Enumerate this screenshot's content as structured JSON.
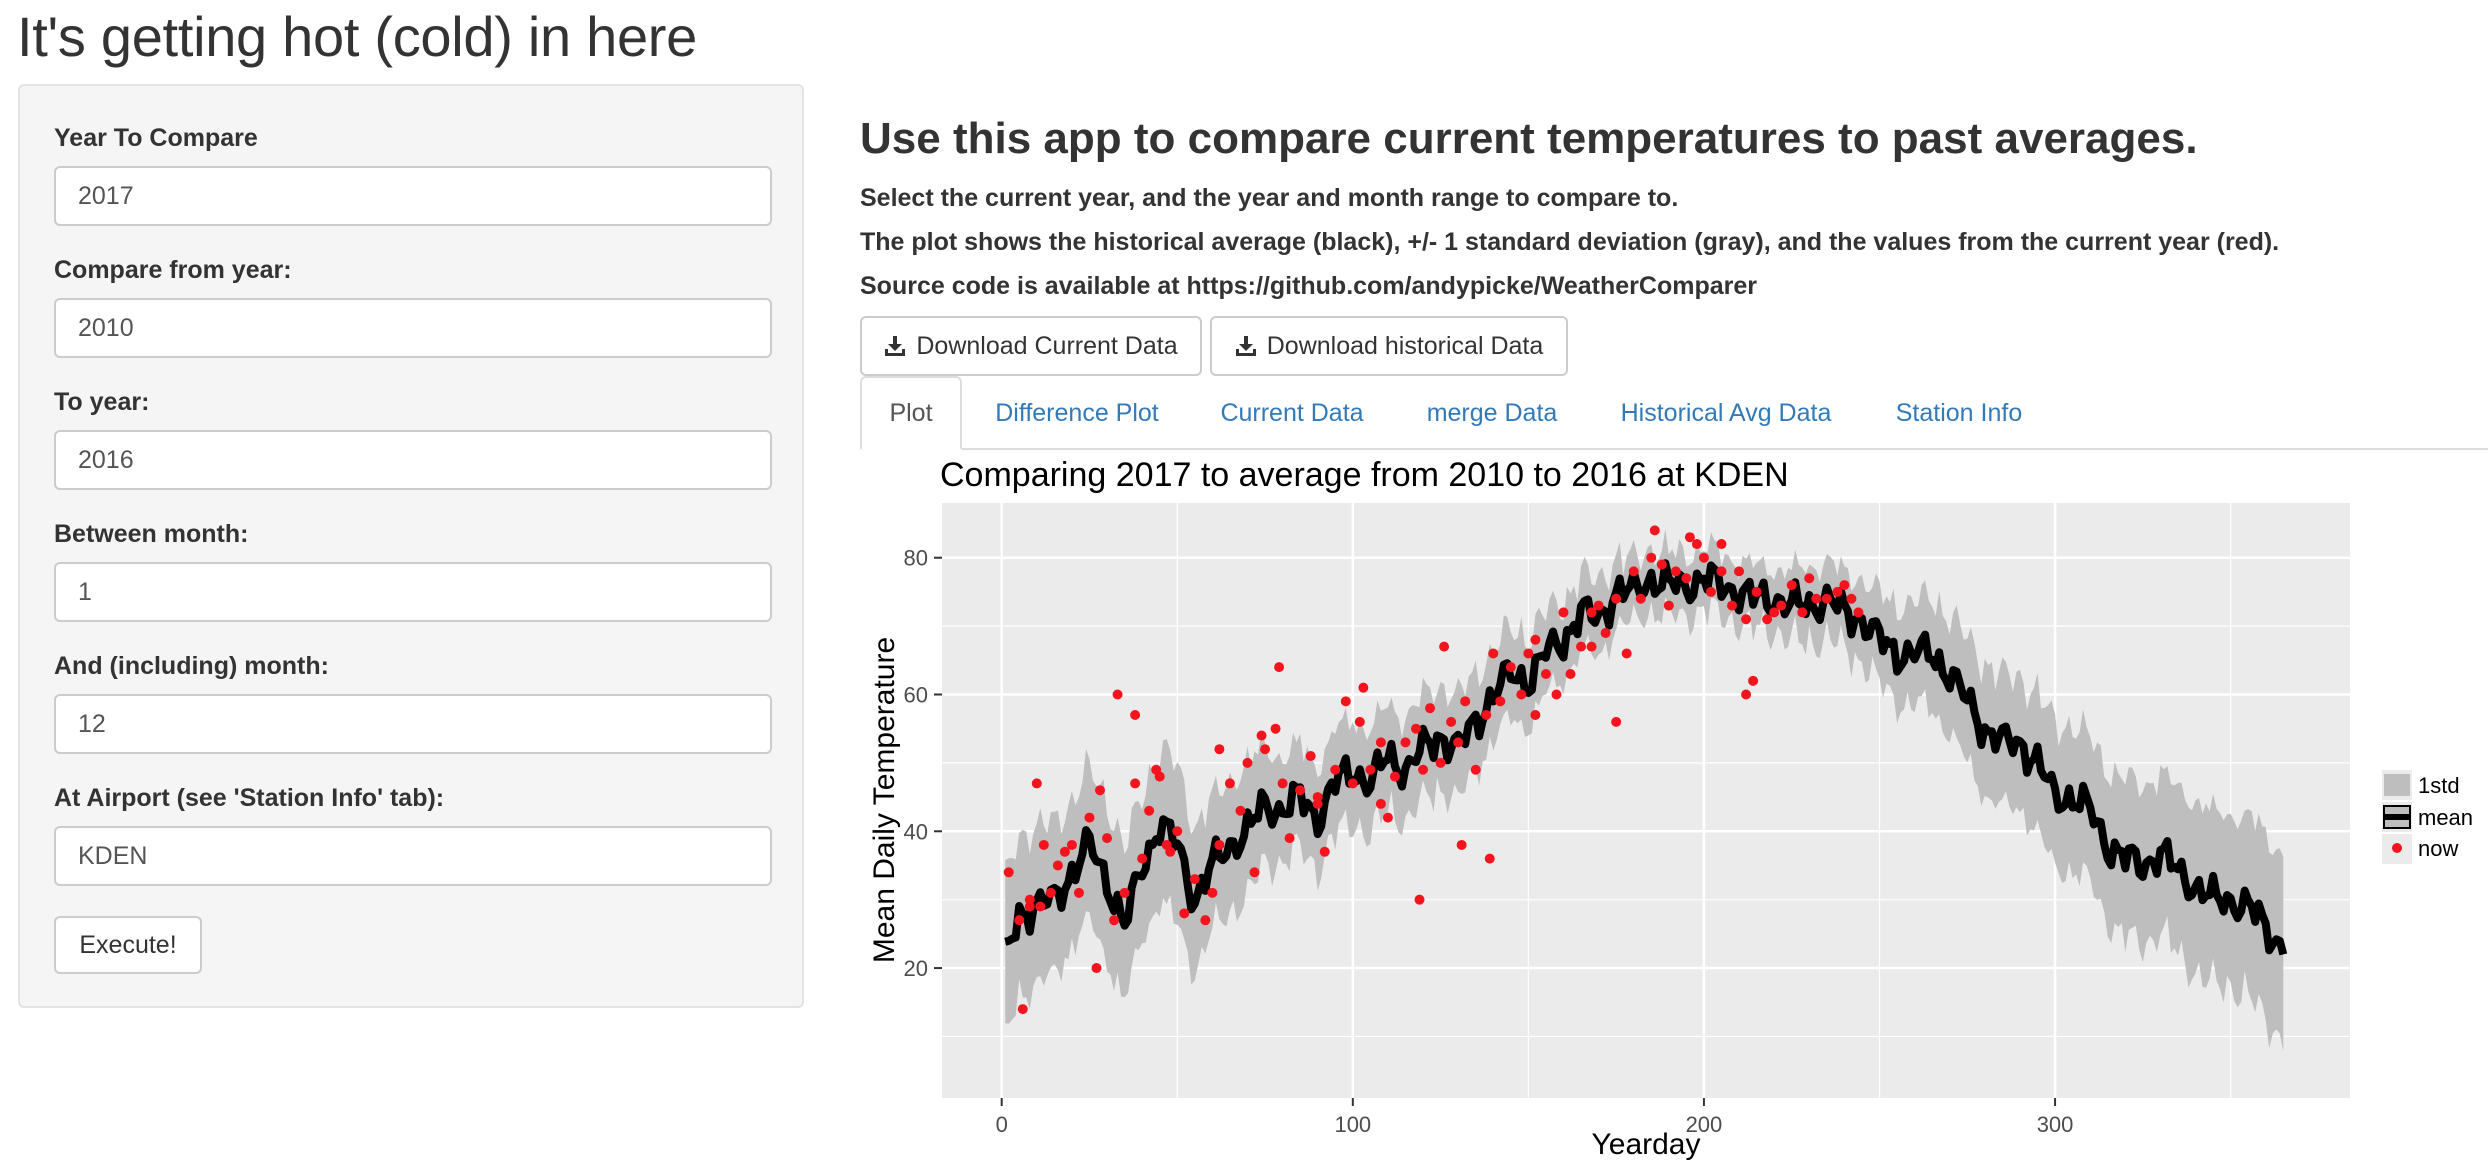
{
  "app": {
    "title": "It's getting hot (cold) in here"
  },
  "sidebar": {
    "fields": [
      {
        "label": "Year To Compare",
        "value": "2017"
      },
      {
        "label": "Compare from year:",
        "value": "2010"
      },
      {
        "label": "To year:",
        "value": "2016"
      },
      {
        "label": "Between month:",
        "value": "1"
      },
      {
        "label": "And (including) month:",
        "value": "12"
      },
      {
        "label": "At Airport (see 'Station Info' tab):",
        "value": "KDEN"
      }
    ],
    "execute_label": "Execute!"
  },
  "main": {
    "heading": "Use this app to compare current temperatures to past averages.",
    "lines": [
      "Select the current year, and the year and month range to compare to.",
      "The plot shows the historical average (black), +/- 1 standard deviation (gray), and the values from the current year (red).",
      "Source code is available at https://github.com/andypicke/WeatherComparer"
    ],
    "download_current_label": "Download Current Data",
    "download_historical_label": "Download historical Data",
    "tabs": [
      "Plot",
      "Difference Plot",
      "Current Data",
      "merge Data",
      "Historical Avg Data",
      "Station Info"
    ],
    "active_tab": "Plot"
  },
  "colors": {
    "panel_bg": "#ebebeb",
    "grid": "#ffffff",
    "band": "#bebebe",
    "mean": "#000000",
    "now": "#f5141e",
    "link": "#337ab7"
  },
  "chart_data": {
    "type": "line",
    "title": "Comparing  2017  to average from  2010 to 2016 at  KDEN",
    "xlabel": "Yearday",
    "ylabel": "Mean Daily Temperature",
    "xlim": [
      -17,
      384
    ],
    "ylim": [
      1,
      88
    ],
    "xticks": [
      0,
      100,
      200,
      300
    ],
    "yticks": [
      20,
      40,
      60,
      80
    ],
    "legend": {
      "position": "right",
      "entries": [
        "1std",
        "mean",
        "now"
      ]
    },
    "mean_keyframes": {
      "x": [
        1,
        5,
        10,
        15,
        20,
        25,
        30,
        35,
        40,
        45,
        50,
        55,
        60,
        65,
        70,
        75,
        80,
        85,
        90,
        95,
        100,
        105,
        110,
        115,
        120,
        125,
        130,
        135,
        140,
        145,
        150,
        155,
        160,
        165,
        170,
        175,
        180,
        185,
        190,
        195,
        200,
        205,
        210,
        215,
        220,
        225,
        230,
        235,
        240,
        245,
        250,
        255,
        260,
        265,
        270,
        275,
        280,
        285,
        290,
        295,
        300,
        305,
        310,
        315,
        320,
        325,
        330,
        335,
        340,
        345,
        350,
        355,
        360,
        365
      ],
      "y": [
        21,
        28,
        29,
        30,
        34,
        38,
        33,
        26,
        35,
        41,
        38,
        30,
        35,
        38,
        40,
        44,
        43,
        45,
        42,
        47,
        49,
        47,
        51,
        49,
        52,
        54,
        52,
        56,
        60,
        63,
        62,
        66,
        68,
        72,
        71,
        75,
        75,
        77,
        76,
        76,
        77,
        76,
        75,
        74,
        74,
        73,
        73,
        74,
        72,
        71,
        68,
        66,
        66,
        66,
        63,
        59,
        55,
        53,
        53,
        50,
        45,
        45,
        43,
        38,
        36,
        35,
        37,
        34,
        32,
        30,
        30,
        29,
        26,
        23
      ]
    },
    "std_keyframes": {
      "x": [
        1,
        10,
        20,
        30,
        40,
        50,
        60,
        70,
        80,
        90,
        100,
        110,
        120,
        130,
        140,
        150,
        160,
        170,
        180,
        190,
        200,
        210,
        220,
        230,
        240,
        250,
        260,
        270,
        280,
        290,
        300,
        310,
        320,
        330,
        340,
        350,
        360,
        365
      ],
      "y": [
        10,
        10,
        9,
        10,
        9,
        10,
        8,
        8,
        6,
        6,
        6,
        6,
        6,
        6,
        5,
        5,
        4,
        4,
        3,
        3,
        3,
        3,
        3,
        4,
        4,
        5,
        6,
        7,
        8,
        8,
        9,
        9,
        10,
        10,
        11,
        11,
        12,
        12
      ]
    },
    "now_points": {
      "x": [
        2,
        5,
        8,
        10,
        12,
        14,
        16,
        18,
        20,
        22,
        25,
        28,
        30,
        32,
        35,
        38,
        40,
        42,
        45,
        48,
        50,
        52,
        55,
        58,
        60,
        62,
        65,
        68,
        70,
        72,
        75,
        78,
        80,
        82,
        85,
        88,
        90,
        92,
        95,
        98,
        100,
        102,
        105,
        108,
        110,
        112,
        115,
        118,
        120,
        122,
        125,
        128,
        130,
        132,
        135,
        138,
        140,
        142,
        145,
        148,
        150,
        152,
        155,
        158,
        160,
        162,
        165,
        168,
        170,
        172,
        175,
        178,
        180,
        182,
        185,
        188,
        190,
        192,
        195,
        198,
        200,
        202,
        205,
        208,
        210,
        212,
        215,
        218,
        220,
        222,
        225,
        228,
        230,
        232,
        235,
        238,
        240,
        242,
        244,
        6,
        11,
        27,
        33,
        38,
        47,
        79,
        103,
        119,
        131,
        139,
        175,
        196,
        212,
        214,
        8,
        44,
        62,
        74,
        90,
        108,
        126,
        152,
        168,
        186,
        205
      ],
      "y": [
        34,
        27,
        30,
        47,
        38,
        31,
        35,
        37,
        38,
        31,
        42,
        46,
        39,
        27,
        31,
        47,
        36,
        43,
        48,
        37,
        40,
        28,
        33,
        27,
        31,
        38,
        47,
        43,
        50,
        34,
        52,
        55,
        47,
        39,
        46,
        51,
        44,
        37,
        49,
        59,
        47,
        56,
        49,
        53,
        42,
        48,
        53,
        55,
        49,
        58,
        50,
        56,
        53,
        59,
        49,
        57,
        66,
        59,
        64,
        60,
        66,
        57,
        63,
        60,
        72,
        63,
        67,
        72,
        73,
        69,
        74,
        66,
        78,
        74,
        80,
        79,
        73,
        78,
        77,
        82,
        80,
        75,
        78,
        73,
        78,
        71,
        75,
        71,
        72,
        73,
        76,
        72,
        77,
        74,
        74,
        75,
        76,
        74,
        72,
        14,
        29,
        20,
        60,
        57,
        38,
        64,
        61,
        30,
        38,
        36,
        56,
        83,
        60,
        62,
        29,
        49,
        52,
        54,
        45,
        44,
        67,
        68,
        67,
        84,
        82
      ]
    }
  }
}
